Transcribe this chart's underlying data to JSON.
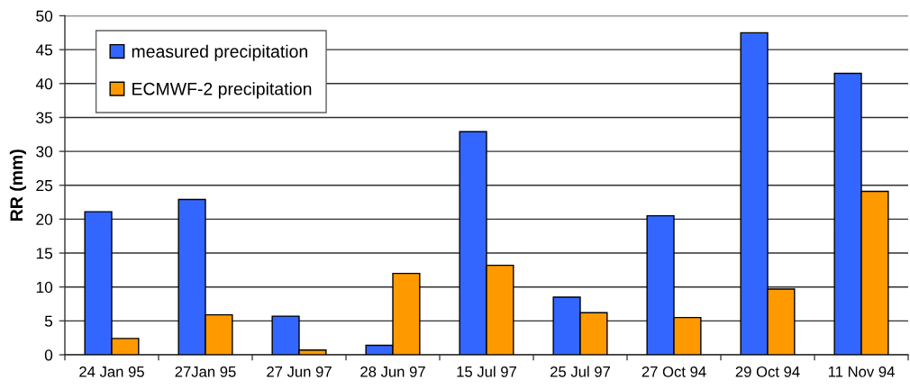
{
  "chart_data": {
    "type": "bar",
    "categories": [
      "24 Jan 95",
      "27Jan 95",
      "27 Jun 97",
      "28 Jun 97",
      "15 Jul 97",
      "25 Jul 97",
      "27 Oct 94",
      "29 Oct 94",
      "11 Nov 94"
    ],
    "series": [
      {
        "name": "measured precipitation",
        "color": "#3366ff",
        "values": [
          21.1,
          22.9,
          5.7,
          1.4,
          32.9,
          8.5,
          20.5,
          47.5,
          41.5
        ]
      },
      {
        "name": "ECMWF-2 precipitation",
        "color": "#ff9900",
        "values": [
          2.4,
          5.9,
          0.7,
          12.0,
          13.2,
          6.2,
          5.5,
          9.7,
          24.1
        ]
      }
    ],
    "ylabel": "RR (mm)",
    "ylim": [
      0,
      50
    ],
    "yticks": [
      0,
      5,
      10,
      15,
      20,
      25,
      30,
      35,
      40,
      45,
      50
    ],
    "grid": "y",
    "legend": "top left"
  }
}
